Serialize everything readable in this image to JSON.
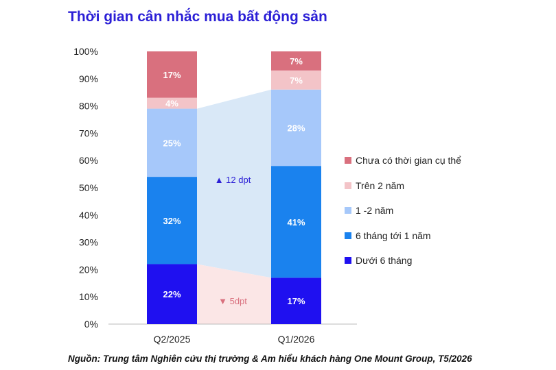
{
  "title": "Thời gian cân nhắc mua bất động sản",
  "source": "Nguồn: Trung tâm Nghiên cứu thị trường & Am hiểu khách hàng One Mount Group, T5/2026",
  "chart_data": {
    "type": "bar",
    "stacked": true,
    "categories": [
      "Q2/2025",
      "Q1/2026"
    ],
    "y_ticks": [
      "0%",
      "10%",
      "20%",
      "30%",
      "40%",
      "50%",
      "60%",
      "70%",
      "80%",
      "90%",
      "100%"
    ],
    "ylim": [
      0,
      100
    ],
    "grid": false,
    "legend_position": "right",
    "series": [
      {
        "name": "Dưới 6 tháng",
        "color": "#1f10f0",
        "values": [
          22,
          17
        ],
        "labels": [
          "22%",
          "17%"
        ]
      },
      {
        "name": "6 tháng tới 1 năm",
        "color": "#1a82ee",
        "values": [
          32,
          41
        ],
        "labels": [
          "32%",
          "41%"
        ]
      },
      {
        "name": "1 -2 năm",
        "color": "#a6c8fa",
        "values": [
          25,
          28
        ],
        "labels": [
          "25%",
          "28%"
        ]
      },
      {
        "name": "Trên 2 năm",
        "color": "#f3c4c8",
        "values": [
          4,
          7
        ],
        "labels": [
          "4%",
          "7%"
        ]
      },
      {
        "name": "Chưa có thời gian cụ thể",
        "color": "#d9707e",
        "values": [
          17,
          7
        ],
        "labels": [
          "17%",
          "7%"
        ]
      }
    ],
    "legend_order": [
      "Chưa có thời gian cụ thể",
      "Trên 2 năm",
      "1 -2 năm",
      "6 tháng tới 1 năm",
      "Dưới 6 tháng"
    ],
    "annotations": [
      {
        "text": "▲ 12 dpt",
        "color": "#2b1fd6",
        "band_color": "#d9e8f7",
        "from_percent": [
          22,
          79
        ],
        "to_percent": [
          17,
          86
        ]
      },
      {
        "text": "▼ 5dpt",
        "color": "#d9707e",
        "band_color": "#fbe6e6",
        "from_percent": [
          0,
          22
        ],
        "to_percent": [
          0,
          17
        ]
      }
    ]
  }
}
